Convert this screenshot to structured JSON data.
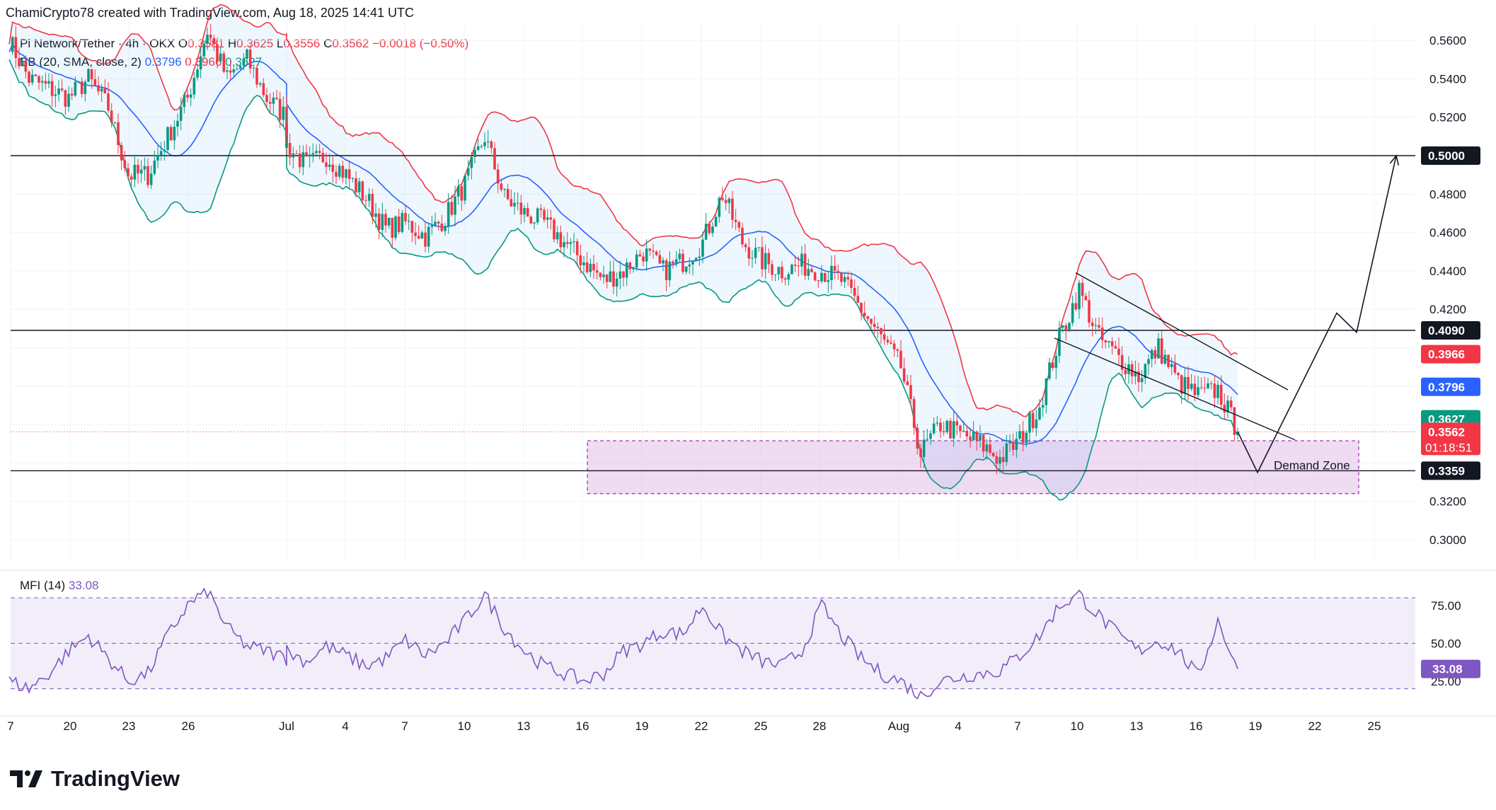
{
  "header": {
    "text": "ChamiCrypto78 created with TradingView.com, Aug 18, 2025 14:41 UTC"
  },
  "legend": {
    "symbol": "Pi Network/Tether · 4h · OKX",
    "o_label": "O",
    "o_value": "0.3581",
    "h_label": "H",
    "h_value": "0.3625",
    "l_label": "L",
    "l_value": "0.3556",
    "c_label": "C",
    "c_value": "0.3562",
    "change": "−0.0018 (−0.50%)",
    "bb_name": "BB (20, SMA, close, 2)",
    "bb_basis": "0.3796",
    "bb_upper": "0.3966",
    "bb_lower": "0.3627",
    "mfi_name": "MFI (14)",
    "mfi_value": "33.08"
  },
  "brand": {
    "name": "TradingView"
  },
  "colors": {
    "up": "#089981",
    "down": "#f23645",
    "basis": "#2962ff",
    "mfi": "#7e57c2",
    "zone": "#e1bee7"
  },
  "chart_data": [
    {
      "type": "candlestick",
      "title": "Pi Network/Tether · 4h · OKX",
      "x_ticks": [
        "7",
        "20",
        "23",
        "26",
        "Jul",
        "4",
        "7",
        "10",
        "13",
        "16",
        "19",
        "22",
        "25",
        "28",
        "Aug",
        "4",
        "7",
        "10",
        "13",
        "16",
        "19",
        "22",
        "25"
      ],
      "ylim": [
        0.29,
        0.57
      ],
      "y_ticks": [
        "0.3000",
        "0.3200",
        "0.4200",
        "0.4400",
        "0.4600",
        "0.4800",
        "0.5200",
        "0.5400",
        "0.5600"
      ],
      "price_badges": [
        {
          "label": "0.5000",
          "value": 0.5,
          "kind": "level"
        },
        {
          "label": "0.4090",
          "value": 0.409,
          "kind": "level"
        },
        {
          "label": "0.3966",
          "value": 0.3966,
          "kind": "upper"
        },
        {
          "label": "0.3796",
          "value": 0.3796,
          "kind": "basis"
        },
        {
          "label": "0.3627",
          "value": 0.3627,
          "kind": "lower"
        },
        {
          "label": "0.3562",
          "sub": "01:18:51",
          "value": 0.3562,
          "kind": "last"
        },
        {
          "label": "0.3359",
          "value": 0.3359,
          "kind": "level"
        }
      ],
      "horizontal_levels": [
        0.5,
        0.409,
        0.3359
      ],
      "demand_zone": {
        "label": "Demand Zone",
        "top": 0.3515,
        "bottom": 0.324
      },
      "projection_path": [
        [
          "Aug 18",
          0.3562
        ],
        [
          "Aug 19",
          0.335
        ],
        [
          "Aug 23",
          0.418
        ],
        [
          "Aug 24",
          0.408
        ],
        [
          "Aug 26",
          0.5
        ]
      ],
      "close_path": [
        [
          "Jun 16",
          0.56
        ],
        [
          "Jun 17",
          0.54
        ],
        [
          "Jun 18",
          0.535
        ],
        [
          "Jun 19",
          0.53
        ],
        [
          "Jun 20",
          0.54
        ],
        [
          "Jun 21",
          0.525
        ],
        [
          "Jun 22",
          0.49
        ],
        [
          "Jun 23",
          0.49
        ],
        [
          "Jun 24",
          0.51
        ],
        [
          "Jun 25",
          0.53
        ],
        [
          "Jun 26",
          0.565
        ],
        [
          "Jun 27",
          0.54
        ],
        [
          "Jun 28",
          0.55
        ],
        [
          "Jun 29",
          0.53
        ],
        [
          "Jun 30",
          0.52
        ],
        [
          "Jul 1",
          0.505
        ],
        [
          "Jul 2",
          0.495
        ],
        [
          "Jul 3",
          0.5
        ],
        [
          "Jul 4",
          0.49
        ],
        [
          "Jul 5",
          0.478
        ],
        [
          "Jul 6",
          0.462
        ],
        [
          "Jul 7",
          0.465
        ],
        [
          "Jul 8",
          0.458
        ],
        [
          "Jul 9",
          0.468
        ],
        [
          "Jul 10",
          0.485
        ],
        [
          "Jul 11",
          0.51
        ],
        [
          "Jul 12",
          0.478
        ],
        [
          "Jul 13",
          0.47
        ],
        [
          "Jul 14",
          0.465
        ],
        [
          "Jul 15",
          0.455
        ],
        [
          "Jul 16",
          0.445
        ],
        [
          "Jul 17",
          0.435
        ],
        [
          "Jul 18",
          0.44
        ],
        [
          "Jul 19",
          0.45
        ],
        [
          "Jul 20",
          0.44
        ],
        [
          "Jul 21",
          0.445
        ],
        [
          "Jul 22",
          0.455
        ],
        [
          "Jul 23",
          0.48
        ],
        [
          "Jul 24",
          0.455
        ],
        [
          "Jul 25",
          0.445
        ],
        [
          "Jul 26",
          0.44
        ],
        [
          "Jul 27",
          0.443
        ],
        [
          "Jul 28",
          0.44
        ],
        [
          "Jul 29",
          0.435
        ],
        [
          "Jul 30",
          0.42
        ],
        [
          "Jul 31",
          0.405
        ],
        [
          "Aug 1",
          0.39
        ],
        [
          "Aug 2",
          0.345
        ],
        [
          "Aug 3",
          0.36
        ],
        [
          "Aug 4",
          0.355
        ],
        [
          "Aug 5",
          0.35
        ],
        [
          "Aug 6",
          0.342
        ],
        [
          "Aug 7",
          0.352
        ],
        [
          "Aug 8",
          0.37
        ],
        [
          "Aug 9",
          0.405
        ],
        [
          "Aug 10",
          0.43
        ],
        [
          "Aug 11",
          0.405
        ],
        [
          "Aug 12",
          0.395
        ],
        [
          "Aug 13",
          0.385
        ],
        [
          "Aug 14",
          0.4
        ],
        [
          "Aug 15",
          0.382
        ],
        [
          "Aug 16",
          0.375
        ],
        [
          "Aug 17",
          0.378
        ],
        [
          "Aug 18",
          0.3562
        ]
      ]
    },
    {
      "type": "line",
      "title": "MFI (14)",
      "ylim": [
        10,
        88
      ],
      "y_ticks": [
        "75.00",
        "50.00",
        "25.00"
      ],
      "bands": [
        80,
        50,
        20
      ],
      "last_value": "33.08",
      "series": [
        {
          "name": "MFI (14)",
          "values": [
            [
              "Jun 16",
              25
            ],
            [
              "Jun 17",
              20
            ],
            [
              "Jun 18",
              30
            ],
            [
              "Jun 19",
              45
            ],
            [
              "Jun 20",
              55
            ],
            [
              "Jun 21",
              40
            ],
            [
              "Jun 22",
              25
            ],
            [
              "Jun 23",
              30
            ],
            [
              "Jun 24",
              55
            ],
            [
              "Jun 25",
              75
            ],
            [
              "Jun 26",
              85
            ],
            [
              "Jun 27",
              60
            ],
            [
              "Jun 28",
              48
            ],
            [
              "Jun 29",
              45
            ],
            [
              "Jun 30",
              40
            ],
            [
              "Jul 1",
              45
            ],
            [
              "Jul 2",
              38
            ],
            [
              "Jul 3",
              48
            ],
            [
              "Jul 4",
              42
            ],
            [
              "Jul 5",
              35
            ],
            [
              "Jul 6",
              40
            ],
            [
              "Jul 7",
              52
            ],
            [
              "Jul 8",
              42
            ],
            [
              "Jul 9",
              50
            ],
            [
              "Jul 10",
              65
            ],
            [
              "Jul 11",
              82
            ],
            [
              "Jul 12",
              60
            ],
            [
              "Jul 13",
              45
            ],
            [
              "Jul 14",
              35
            ],
            [
              "Jul 15",
              30
            ],
            [
              "Jul 16",
              25
            ],
            [
              "Jul 17",
              30
            ],
            [
              "Jul 18",
              45
            ],
            [
              "Jul 19",
              50
            ],
            [
              "Jul 20",
              58
            ],
            [
              "Jul 21",
              56
            ],
            [
              "Jul 22",
              75
            ],
            [
              "Jul 23",
              55
            ],
            [
              "Jul 24",
              45
            ],
            [
              "Jul 25",
              38
            ],
            [
              "Jul 26",
              35
            ],
            [
              "Jul 27",
              45
            ],
            [
              "Jul 28",
              75
            ],
            [
              "Jul 29",
              55
            ],
            [
              "Jul 30",
              40
            ],
            [
              "Jul 31",
              30
            ],
            [
              "Aug 1",
              25
            ],
            [
              "Aug 2",
              15
            ],
            [
              "Aug 3",
              25
            ],
            [
              "Aug 4",
              28
            ],
            [
              "Aug 5",
              30
            ],
            [
              "Aug 6",
              32
            ],
            [
              "Aug 7",
              42
            ],
            [
              "Aug 8",
              55
            ],
            [
              "Aug 9",
              75
            ],
            [
              "Aug 10",
              82
            ],
            [
              "Aug 11",
              68
            ],
            [
              "Aug 12",
              55
            ],
            [
              "Aug 13",
              45
            ],
            [
              "Aug 14",
              52
            ],
            [
              "Aug 15",
              45
            ],
            [
              "Aug 16",
              28
            ],
            [
              "Aug 17",
              65
            ],
            [
              "Aug 18",
              33.08
            ]
          ]
        }
      ]
    }
  ]
}
